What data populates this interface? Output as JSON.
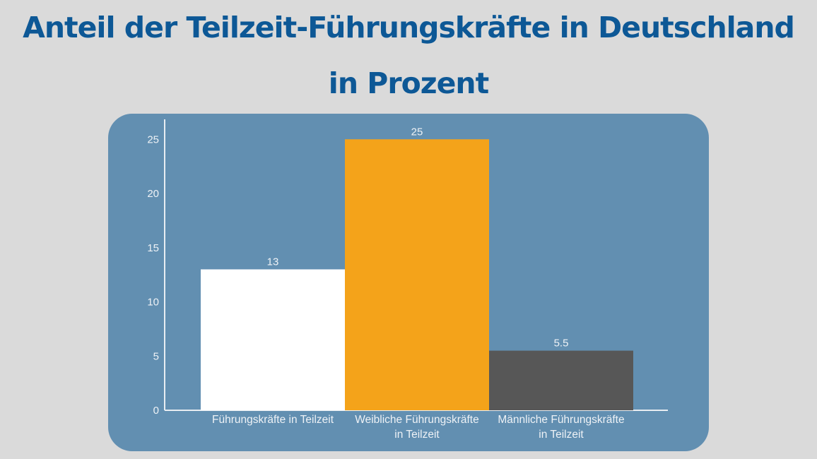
{
  "title": {
    "line1": "Anteil der Teilzeit-Führungskräfte in Deutschland",
    "line2": "in Prozent"
  },
  "chart_data": {
    "type": "bar",
    "title": "Anteil der Teilzeit-Führungskräfte in Deutschland in Prozent",
    "categories": [
      [
        "Führungskräfte in Teilzeit"
      ],
      [
        "Weibliche Führungskräfte",
        "in Teilzeit"
      ],
      [
        "Männliche Führungskräfte",
        "in Teilzeit"
      ]
    ],
    "values": [
      13,
      25,
      5.5
    ],
    "value_labels": [
      "13",
      "25",
      "5.5"
    ],
    "bar_colors": [
      "#ffffff",
      "#f4a31a",
      "#575757"
    ],
    "yticks": [
      0,
      5,
      10,
      15,
      20,
      25
    ],
    "ylim": [
      0,
      26
    ],
    "xlabel": "",
    "ylabel": "",
    "grid": false,
    "legend": "none"
  },
  "colors": {
    "background": "#dadada",
    "title": "#0d5896",
    "panel": "#628fb1",
    "axis": "#e8edf2",
    "text": "#eef2f6"
  }
}
